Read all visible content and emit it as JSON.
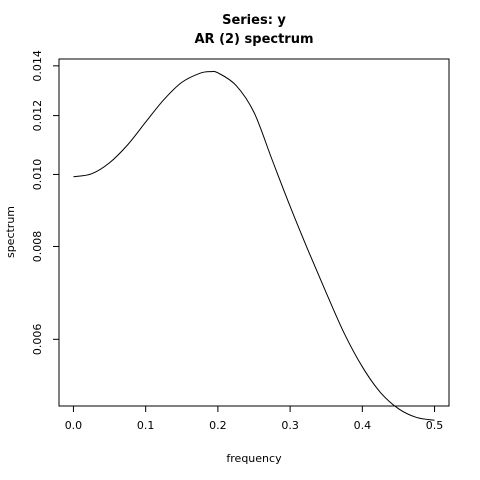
{
  "chart_data": {
    "type": "line",
    "title": "Series: y",
    "subtitle": "AR (2) spectrum",
    "xlabel": "frequency",
    "ylabel": "spectrum",
    "xlim": [
      -0.02,
      0.52
    ],
    "ylim": [
      0.00488,
      0.0143
    ],
    "y_scale": "log",
    "grid": false,
    "x_ticks": [
      "0.0",
      "0.1",
      "0.2",
      "0.3",
      "0.4",
      "0.5"
    ],
    "y_ticks": [
      "0.006",
      "0.008",
      "0.010",
      "0.012",
      "0.014"
    ],
    "x": [
      0.0,
      0.025,
      0.05,
      0.075,
      0.1,
      0.125,
      0.15,
      0.175,
      0.19,
      0.2,
      0.225,
      0.25,
      0.275,
      0.3,
      0.325,
      0.35,
      0.375,
      0.4,
      0.425,
      0.45,
      0.475,
      0.5
    ],
    "series": [
      {
        "values": [
          0.00993,
          0.01002,
          0.01037,
          0.01096,
          0.01176,
          0.0126,
          0.0133,
          0.01368,
          0.01375,
          0.0137,
          0.01318,
          0.01212,
          0.01047,
          0.00906,
          0.0079,
          0.00693,
          0.00611,
          0.00551,
          0.00509,
          0.00484,
          0.00471,
          0.00467
        ]
      }
    ],
    "colors": {
      "line": "#000000",
      "axis": "#000000",
      "background": "#ffffff"
    }
  }
}
